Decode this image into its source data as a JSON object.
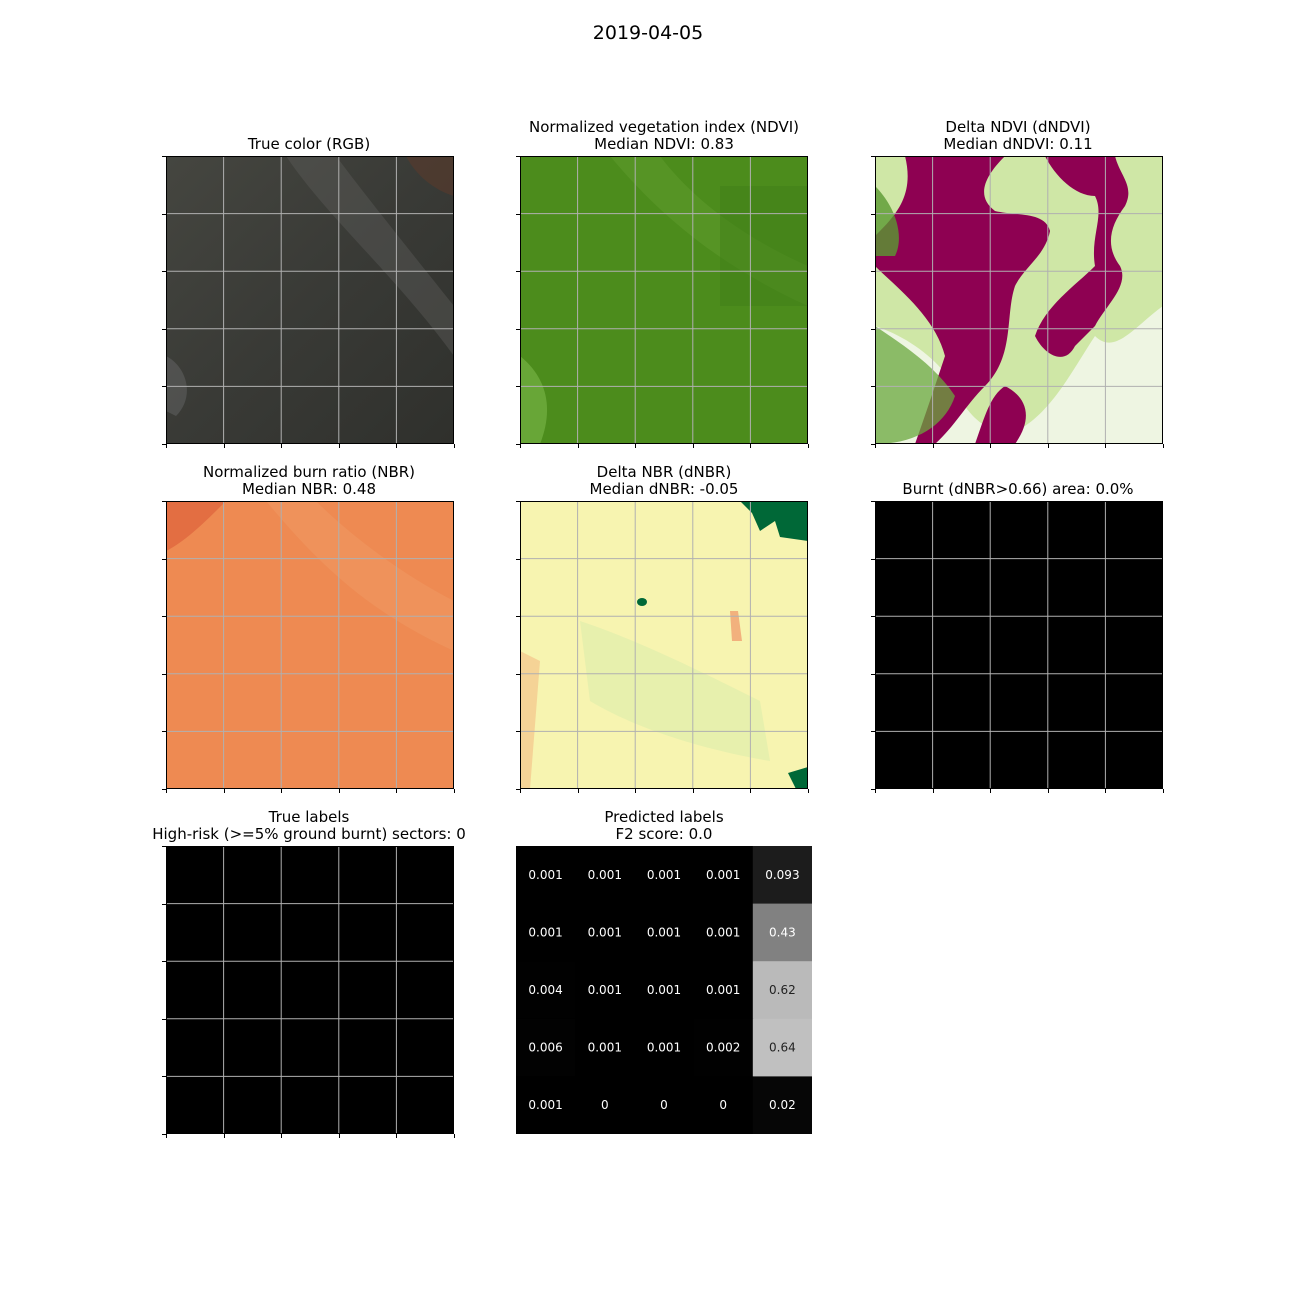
{
  "figure": {
    "title": "2019-04-05"
  },
  "panels": [
    {
      "title": "True color (RGB)",
      "subtitle": ""
    },
    {
      "title": "Normalized vegetation index (NDVI)",
      "subtitle": "Median NDVI: 0.83"
    },
    {
      "title": "Delta NDVI (dNDVI)",
      "subtitle": "Median dNDVI: 0.11"
    },
    {
      "title": "Normalized burn ratio (NBR)",
      "subtitle": "Median NBR: 0.48"
    },
    {
      "title": "Delta NBR (dNBR)",
      "subtitle": "Median dNBR: -0.05"
    },
    {
      "title": "Burnt (dNBR>0.66) area: 0.0%",
      "subtitle": ""
    },
    {
      "title": "True labels",
      "subtitle": "High-risk (>=5% ground burnt) sectors: 0"
    },
    {
      "title": "Predicted labels",
      "subtitle": "F2 score: 0.0"
    }
  ],
  "colors": {
    "rgb_base": "#3a3b37",
    "ndvi_base": "#4c8c1c",
    "dndvi_magenta": "#8e0152",
    "nbr_base": "#ee8a52",
    "dnbr_base": "#f7f4b0",
    "dnbr_green": "#006837",
    "grid": "#b0b0b0",
    "burnt": "#000000"
  },
  "chart_data": {
    "type": "heatmap",
    "title": "Predicted labels",
    "subtitle": "F2 score: 0.0",
    "rows": 5,
    "cols": 5,
    "value_range": [
      0,
      1
    ],
    "colormap": "gray",
    "values": [
      [
        0.001,
        0.001,
        0.001,
        0.001,
        0.093
      ],
      [
        0.001,
        0.001,
        0.001,
        0.001,
        0.43
      ],
      [
        0.004,
        0.001,
        0.001,
        0.001,
        0.62
      ],
      [
        0.006,
        0.001,
        0.001,
        0.002,
        0.64
      ],
      [
        0.001,
        0,
        0,
        0,
        0.02
      ]
    ],
    "labels": [
      [
        "0.001",
        "0.001",
        "0.001",
        "0.001",
        "0.093"
      ],
      [
        "0.001",
        "0.001",
        "0.001",
        "0.001",
        "0.43"
      ],
      [
        "0.004",
        "0.001",
        "0.001",
        "0.001",
        "0.62"
      ],
      [
        "0.006",
        "0.001",
        "0.001",
        "0.002",
        "0.64"
      ],
      [
        "0.001",
        "0",
        "0",
        "0",
        "0.02"
      ]
    ],
    "true_labels": [
      [
        0,
        0,
        0,
        0,
        0
      ],
      [
        0,
        0,
        0,
        0,
        0
      ],
      [
        0,
        0,
        0,
        0,
        0
      ],
      [
        0,
        0,
        0,
        0,
        0
      ],
      [
        0,
        0,
        0,
        0,
        0
      ]
    ],
    "burnt_area_pct": 0.0,
    "grid": true
  }
}
